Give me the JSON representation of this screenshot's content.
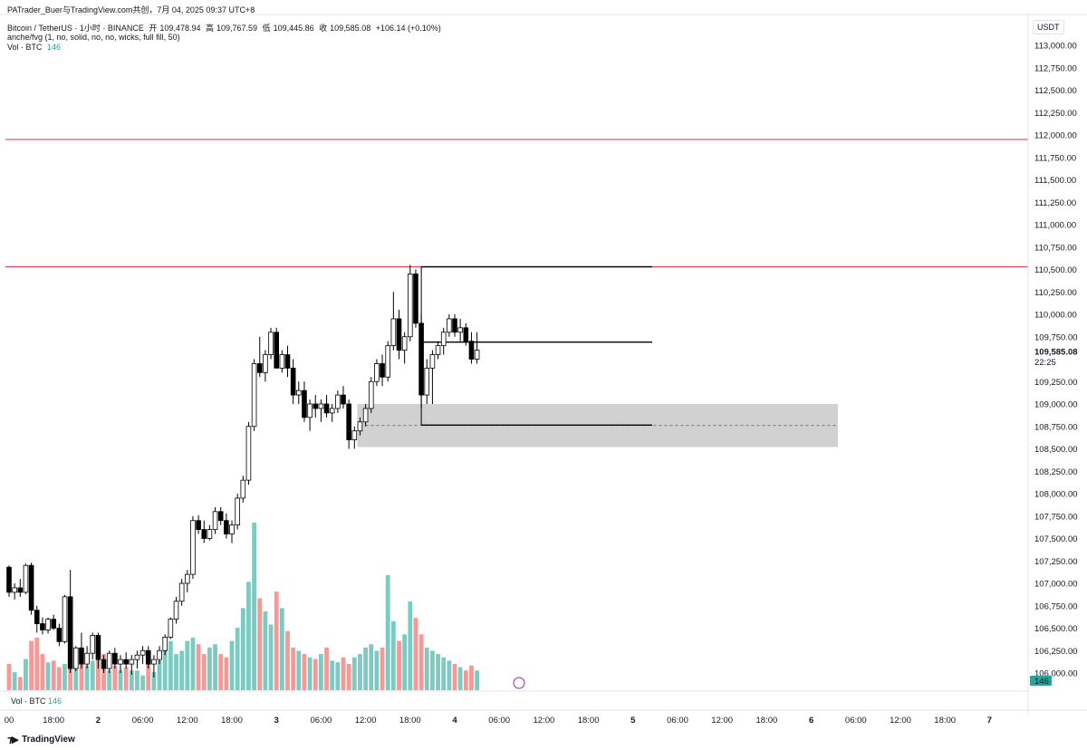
{
  "header": {
    "published": "PATrader_Buer与TradingView.com共创，7月 04, 2025 09:37 UTC+8",
    "symbol": "Bitcoin / TetherUS · 1小时 · BINANCE",
    "open_label": "开",
    "open": "109,478.94",
    "high_label": "高",
    "high": "109,767.59",
    "low_label": "低",
    "low": "109,445.86",
    "close_label": "收",
    "close": "109,585.08",
    "change": "+106.14 (+0.10%)",
    "indicator": "anche/fvg (1, no, solid, no, no, wicks, full fill, 50)",
    "vol_label": "Vol · BTC",
    "vol_value": "146"
  },
  "price_axis": {
    "unit": "USDT",
    "current_price": "109,585.08",
    "countdown": "22:25",
    "volume_badge": "146",
    "ticks": [
      "113,000.00",
      "112,750.00",
      "112,500.00",
      "112,250.00",
      "112,000.00",
      "111,750.00",
      "111,500.00",
      "111,250.00",
      "111,000.00",
      "110,750.00",
      "110,500.00",
      "110,250.00",
      "110,000.00",
      "109,750.00",
      "109,250.00",
      "109,000.00",
      "108,750.00",
      "108,500.00",
      "108,250.00",
      "108,000.00",
      "107,750.00",
      "107,500.00",
      "107,250.00",
      "107,000.00",
      "106,750.00",
      "106,500.00",
      "106,250.00",
      "106,000.00"
    ]
  },
  "time_axis": {
    "labels": [
      "00",
      "18:00",
      "2",
      "06:00",
      "12:00",
      "18:00",
      "3",
      "06:00",
      "12:00",
      "18:00",
      "4",
      "06:00",
      "12:00",
      "18:00",
      "5",
      "06:00",
      "12:00",
      "18:00",
      "6",
      "06:00",
      "12:00",
      "18:00",
      "7"
    ]
  },
  "colors": {
    "up_candle": "#ffffff",
    "down_candle": "#000000",
    "candle_border": "#000000",
    "vol_up": "#26a69a",
    "vol_down": "#ef5350",
    "fvg_box": "#bdbdbd",
    "red_level": "#e0475f",
    "fvg_bull_fill": "#7ee0a0"
  },
  "chart_data": {
    "type": "candlestick",
    "title": "Bitcoin / TetherUS · 1小时 · BINANCE",
    "ylim": [
      105900,
      113200
    ],
    "horizontal_levels": [
      111950,
      110530
    ],
    "black_levels": [
      {
        "price": 110530,
        "from_index": 74,
        "to": "05 06:00"
      },
      {
        "price": 109690,
        "from_index": 74,
        "to": "05 06:00"
      },
      {
        "price": 108765,
        "from_index": 74,
        "to": "05 06:00"
      }
    ],
    "fvg_zone": {
      "low": 108520,
      "high": 109000,
      "from_index": 63,
      "to": "06 00:00",
      "midline": 108760
    },
    "candles": [
      [
        107180,
        107200,
        106850,
        106900,
        80
      ],
      [
        106900,
        107000,
        106820,
        106950,
        55
      ],
      [
        106950,
        107050,
        106850,
        106900,
        40
      ],
      [
        106900,
        107220,
        106880,
        107200,
        95
      ],
      [
        107200,
        107230,
        106650,
        106700,
        150
      ],
      [
        106700,
        106750,
        106450,
        106550,
        160
      ],
      [
        106550,
        106620,
        106430,
        106480,
        110
      ],
      [
        106480,
        106620,
        106440,
        106600,
        85
      ],
      [
        106600,
        106650,
        106480,
        106500,
        90
      ],
      [
        106500,
        106550,
        106300,
        106350,
        70
      ],
      [
        106350,
        106870,
        106330,
        106850,
        80
      ],
      [
        106850,
        107150,
        106000,
        106050,
        210
      ],
      [
        106050,
        106300,
        106020,
        106280,
        130
      ],
      [
        106280,
        106450,
        106050,
        106100,
        110
      ],
      [
        106100,
        106300,
        106050,
        106220,
        75
      ],
      [
        106220,
        106450,
        106150,
        106420,
        90
      ],
      [
        106420,
        106450,
        106050,
        106150,
        150
      ],
      [
        106150,
        106200,
        106000,
        106050,
        110
      ],
      [
        106050,
        106250,
        106000,
        106220,
        60
      ],
      [
        106220,
        106280,
        106050,
        106100,
        75
      ],
      [
        106100,
        106200,
        106000,
        106150,
        60
      ],
      [
        106150,
        106230,
        106050,
        106100,
        70
      ],
      [
        106100,
        106200,
        105980,
        106150,
        60
      ],
      [
        106150,
        106250,
        106050,
        106200,
        60
      ],
      [
        106200,
        106300,
        106100,
        106250,
        45
      ],
      [
        106250,
        106300,
        106050,
        106100,
        80
      ],
      [
        106100,
        106200,
        105950,
        106150,
        55
      ],
      [
        106150,
        106300,
        106100,
        106250,
        90
      ],
      [
        106250,
        106430,
        106200,
        106400,
        120
      ],
      [
        106400,
        106620,
        106380,
        106600,
        150
      ],
      [
        106600,
        106850,
        106550,
        106800,
        110
      ],
      [
        106800,
        107050,
        106750,
        107000,
        120
      ],
      [
        107000,
        107150,
        106900,
        107100,
        150
      ],
      [
        107100,
        107750,
        107050,
        107700,
        160
      ],
      [
        107700,
        107760,
        107550,
        107600,
        140
      ],
      [
        107600,
        107700,
        107450,
        107500,
        110
      ],
      [
        107500,
        107650,
        107480,
        107600,
        130
      ],
      [
        107600,
        107850,
        107550,
        107800,
        140
      ],
      [
        107800,
        107850,
        107650,
        107700,
        110
      ],
      [
        107700,
        107780,
        107500,
        107550,
        100
      ],
      [
        107550,
        107700,
        107450,
        107650,
        150
      ],
      [
        107650,
        108000,
        107600,
        107950,
        190
      ],
      [
        107950,
        108200,
        107900,
        108150,
        250
      ],
      [
        108150,
        108800,
        108100,
        108750,
        330
      ],
      [
        108750,
        109500,
        108700,
        109450,
        510
      ],
      [
        109450,
        109750,
        109300,
        109350,
        280
      ],
      [
        109350,
        109600,
        109250,
        109550,
        240
      ],
      [
        109550,
        109850,
        109500,
        109800,
        200
      ],
      [
        109800,
        109850,
        109400,
        109400,
        300
      ],
      [
        109400,
        109600,
        109350,
        109550,
        250
      ],
      [
        109550,
        109650,
        109300,
        109400,
        180
      ],
      [
        109400,
        109500,
        109000,
        109100,
        130
      ],
      [
        109100,
        109250,
        109000,
        109150,
        120
      ],
      [
        109150,
        109250,
        108800,
        108850,
        110
      ],
      [
        108850,
        109050,
        108700,
        109000,
        100
      ],
      [
        109000,
        109100,
        108850,
        108950,
        95
      ],
      [
        108950,
        109050,
        108800,
        109000,
        110
      ],
      [
        109000,
        109100,
        108850,
        108900,
        130
      ],
      [
        108900,
        109000,
        108800,
        108950,
        90
      ],
      [
        108950,
        109150,
        108900,
        109100,
        85
      ],
      [
        109100,
        109200,
        108950,
        109000,
        100
      ],
      [
        109000,
        109050,
        108500,
        108600,
        80
      ],
      [
        108600,
        108750,
        108500,
        108700,
        100
      ],
      [
        108700,
        108850,
        108650,
        108800,
        110
      ],
      [
        108800,
        109000,
        108750,
        108950,
        130
      ],
      [
        108950,
        109300,
        108900,
        109250,
        140
      ],
      [
        109250,
        109500,
        109200,
        109450,
        120
      ],
      [
        109450,
        109550,
        109200,
        109300,
        130
      ],
      [
        109300,
        109700,
        109250,
        109650,
        350
      ],
      [
        109650,
        110250,
        109600,
        109950,
        210
      ],
      [
        109950,
        110050,
        109500,
        109600,
        150
      ],
      [
        109600,
        109800,
        109450,
        109750,
        170
      ],
      [
        109750,
        110550,
        109700,
        110450,
        270
      ],
      [
        110450,
        110500,
        109850,
        109900,
        220
      ],
      [
        109900,
        110000,
        108950,
        109100,
        170
      ],
      [
        109100,
        109500,
        109000,
        109400,
        130
      ],
      [
        109400,
        109600,
        109000,
        109550,
        120
      ],
      [
        109550,
        109700,
        109500,
        109650,
        110
      ],
      [
        109650,
        109850,
        109550,
        109800,
        100
      ],
      [
        109800,
        110000,
        109750,
        109950,
        90
      ],
      [
        109950,
        110000,
        109750,
        109800,
        80
      ],
      [
        109800,
        109950,
        109700,
        109850,
        70
      ],
      [
        109850,
        109900,
        109650,
        109700,
        60
      ],
      [
        109700,
        109800,
        109450,
        109500,
        75
      ],
      [
        109500,
        109800,
        109450,
        109600,
        60
      ]
    ]
  }
}
